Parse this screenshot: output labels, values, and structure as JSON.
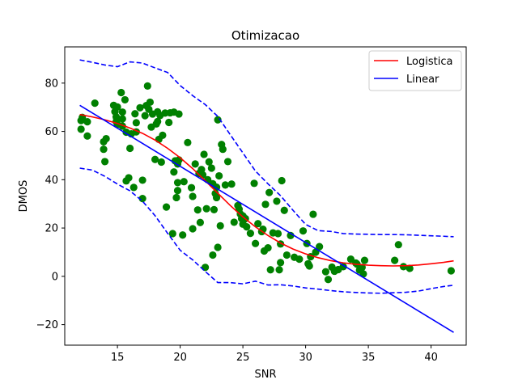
{
  "chart_data": {
    "type": "scatter",
    "title": "Otimizacao",
    "xlabel": "SNR",
    "ylabel": "DMOS",
    "xlim": [
      10.8,
      42.8
    ],
    "ylim": [
      -28.5,
      95
    ],
    "xticks": [
      15,
      20,
      25,
      30,
      35,
      40
    ],
    "yticks": [
      -20,
      0,
      20,
      40,
      60,
      80
    ],
    "grid": false,
    "legend_position": "top-right",
    "points": {
      "color": "#008000",
      "x": [
        12.1,
        12.1,
        12.2,
        12.6,
        12.6,
        13.2,
        13.9,
        13.9,
        14.0,
        14.1,
        14.7,
        14.8,
        14.9,
        14.9,
        15.0,
        15.0,
        15.3,
        15.4,
        15.4,
        15.4,
        15.6,
        15.7,
        15.7,
        15.9,
        16.0,
        16.1,
        16.3,
        16.4,
        16.5,
        16.5,
        16.8,
        17.0,
        17.0,
        17.2,
        17.3,
        17.4,
        17.5,
        17.6,
        17.7,
        17.8,
        18.0,
        18.1,
        18.2,
        18.2,
        18.3,
        18.4,
        18.5,
        18.6,
        18.8,
        18.9,
        19.1,
        19.2,
        19.4,
        19.5,
        19.5,
        19.6,
        19.7,
        19.8,
        19.8,
        19.8,
        19.9,
        19.9,
        20.2,
        20.3,
        20.6,
        20.9,
        21.0,
        21.0,
        21.2,
        21.4,
        21.5,
        21.6,
        21.7,
        21.8,
        21.9,
        22.0,
        22.1,
        22.2,
        22.3,
        22.5,
        22.6,
        22.6,
        22.7,
        22.8,
        22.9,
        22.9,
        23.0,
        23.0,
        23.1,
        23.2,
        23.3,
        23.4,
        23.6,
        23.8,
        24.1,
        24.3,
        24.6,
        24.7,
        24.8,
        24.9,
        25.0,
        25.0,
        25.2,
        25.3,
        25.6,
        25.9,
        26.0,
        26.2,
        26.5,
        26.6,
        26.7,
        26.8,
        27.0,
        27.1,
        27.2,
        27.4,
        27.7,
        27.8,
        27.9,
        28.0,
        28.0,
        28.1,
        28.3,
        28.5,
        28.8,
        29.1,
        29.5,
        29.8,
        30.1,
        30.2,
        30.3,
        30.4,
        30.6,
        30.8,
        31.1,
        31.6,
        31.8,
        32.1,
        32.3,
        32.6,
        33.0,
        33.6,
        34.0,
        34.1,
        34.3,
        34.5,
        34.6,
        34.7,
        37.1,
        37.4,
        37.8,
        38.3,
        41.6
      ],
      "y": [
        64.5,
        60.9,
        65.8,
        64.0,
        58.1,
        71.7,
        55.7,
        52.6,
        47.5,
        57.0,
        70.8,
        68.2,
        64.1,
        66.0,
        70.1,
        62.9,
        76.1,
        65.2,
        62.2,
        68.0,
        73.1,
        39.5,
        59.7,
        40.8,
        53.0,
        59.0,
        36.8,
        67.3,
        59.8,
        63.6,
        69.8,
        39.8,
        32.2,
        66.5,
        70.7,
        78.8,
        69.2,
        72.1,
        61.8,
        67.2,
        48.4,
        63.1,
        64.1,
        68.1,
        56.7,
        66.6,
        47.3,
        58.4,
        67.6,
        28.7,
        63.7,
        67.7,
        17.7,
        43.2,
        68.0,
        47.8,
        32.6,
        35.5,
        38.8,
        46.5,
        48.2,
        67.2,
        17.1,
        39.2,
        55.4,
        36.7,
        33.1,
        19.7,
        46.5,
        27.5,
        42.6,
        22.3,
        44.2,
        42.0,
        50.5,
        3.7,
        28.0,
        40.0,
        47.4,
        44.8,
        8.8,
        38.3,
        27.6,
        34.3,
        36.9,
        32.6,
        64.8,
        12.0,
        41.6,
        20.9,
        54.6,
        52.6,
        37.8,
        47.5,
        38.2,
        22.4,
        29.3,
        27.8,
        25.8,
        23.9,
        25.0,
        21.6,
        23.9,
        20.5,
        17.8,
        38.5,
        13.6,
        21.8,
        18.5,
        19.5,
        10.5,
        29.8,
        11.8,
        34.7,
        2.7,
        18.0,
        31.1,
        17.7,
        2.7,
        13.4,
        5.7,
        39.6,
        27.3,
        8.8,
        16.9,
        7.9,
        7.1,
        18.8,
        13.6,
        5.2,
        4.3,
        8.1,
        25.7,
        10.0,
        12.3,
        1.9,
        -1.3,
        3.8,
        2.1,
        2.8,
        4.0,
        7.1,
        5.5,
        5.0,
        2.6,
        3.7,
        1.0,
        6.6,
        6.6,
        13.1,
        4.0,
        3.3,
        2.3
      ]
    },
    "series": [
      {
        "name": "Logistica",
        "color": "#ff0000",
        "style": "solid",
        "x": [
          12,
          13,
          14,
          15,
          16,
          17,
          18,
          19,
          20,
          21,
          22,
          23,
          24,
          25,
          26,
          27,
          28,
          29,
          30,
          31,
          32,
          33,
          34,
          35,
          36,
          37,
          38,
          39,
          40,
          41,
          41.8
        ],
        "y": [
          67.0,
          66.0,
          64.8,
          63.3,
          61.4,
          59.2,
          56.4,
          53.0,
          49.1,
          44.6,
          39.6,
          34.4,
          29.3,
          24.6,
          20.5,
          16.9,
          13.8,
          11.3,
          9.3,
          7.7,
          6.5,
          5.6,
          5.0,
          4.6,
          4.4,
          4.3,
          4.4,
          4.7,
          5.2,
          5.8,
          6.4
        ]
      },
      {
        "name": "Linear",
        "color": "#0000ff",
        "style": "solid",
        "x": [
          12,
          41.8
        ],
        "y": [
          70.8,
          -23.2
        ]
      },
      {
        "name": "",
        "color": "#0000ff",
        "style": "dashed",
        "x": [
          12,
          13,
          14,
          15,
          16,
          17,
          18,
          19,
          20,
          21,
          22,
          23,
          24,
          25,
          26,
          27,
          28,
          29,
          30,
          31,
          32,
          33,
          34,
          35,
          36,
          37,
          38,
          39,
          40,
          41,
          41.8
        ],
        "y": [
          89.6,
          88.6,
          87.5,
          86.8,
          88.8,
          88.3,
          86.3,
          84.4,
          79.0,
          74.8,
          71.1,
          66.2,
          58.6,
          51.1,
          43.6,
          38.3,
          33.4,
          27.3,
          21.5,
          18.9,
          18.6,
          17.7,
          17.5,
          17.4,
          17.3,
          17.3,
          17.2,
          17.0,
          16.8,
          16.6,
          16.4
        ]
      },
      {
        "name": "",
        "color": "#0000ff",
        "style": "dashed",
        "x": [
          12,
          13,
          14,
          15,
          16,
          17,
          18,
          19,
          20,
          21,
          22,
          23,
          24,
          25,
          26,
          27,
          28,
          29,
          30,
          31,
          32,
          33,
          34,
          35,
          36,
          37,
          38,
          39,
          40,
          41,
          41.8
        ],
        "y": [
          44.8,
          44.0,
          41.4,
          38.2,
          35.4,
          31.1,
          25.1,
          17.8,
          10.8,
          6.8,
          2.0,
          -2.6,
          -2.6,
          -3.1,
          -2.0,
          -3.6,
          -3.5,
          -4.0,
          -4.8,
          -5.3,
          -5.9,
          -6.4,
          -6.7,
          -6.9,
          -7.0,
          -6.8,
          -6.6,
          -6.1,
          -5.1,
          -4.2,
          -3.7
        ]
      }
    ]
  }
}
